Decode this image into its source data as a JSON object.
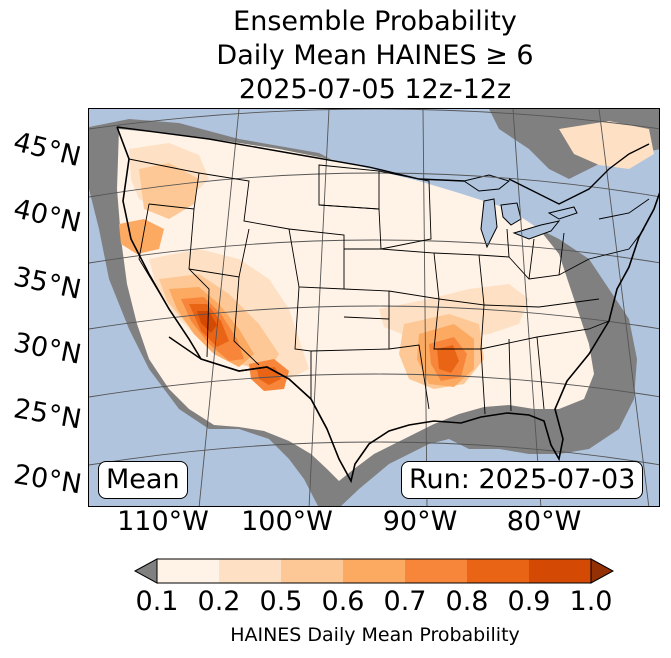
{
  "title": {
    "line1": "Ensemble Probability",
    "line2": "Daily Mean HAINES ≥ 6",
    "line3": "2025-07-05 12z-12z"
  },
  "map": {
    "latitude_labels": [
      "45°N",
      "40°N",
      "35°N",
      "30°N",
      "25°N",
      "20°N"
    ],
    "longitude_labels": [
      "110°W",
      "100°W",
      "90°W",
      "80°W"
    ],
    "statistic_label": "Mean",
    "run_label": "Run: 2025-07-03",
    "colors": {
      "ocean": "#b0c4de",
      "missing_data": "#808080",
      "borders": "#000000",
      "graticule": "#555555"
    }
  },
  "colorbar": {
    "label": "HAINES Daily Mean Probability",
    "tick_labels": [
      "0.1",
      "0.2",
      "0.5",
      "0.6",
      "0.7",
      "0.8",
      "0.9",
      "1.0"
    ],
    "bin_colors": [
      "#fff2e6",
      "#fee1c4",
      "#fdc895",
      "#fca962",
      "#f8863a",
      "#ea6415",
      "#d44a04"
    ],
    "under_color": "#808080",
    "over_color": "#933004"
  }
}
